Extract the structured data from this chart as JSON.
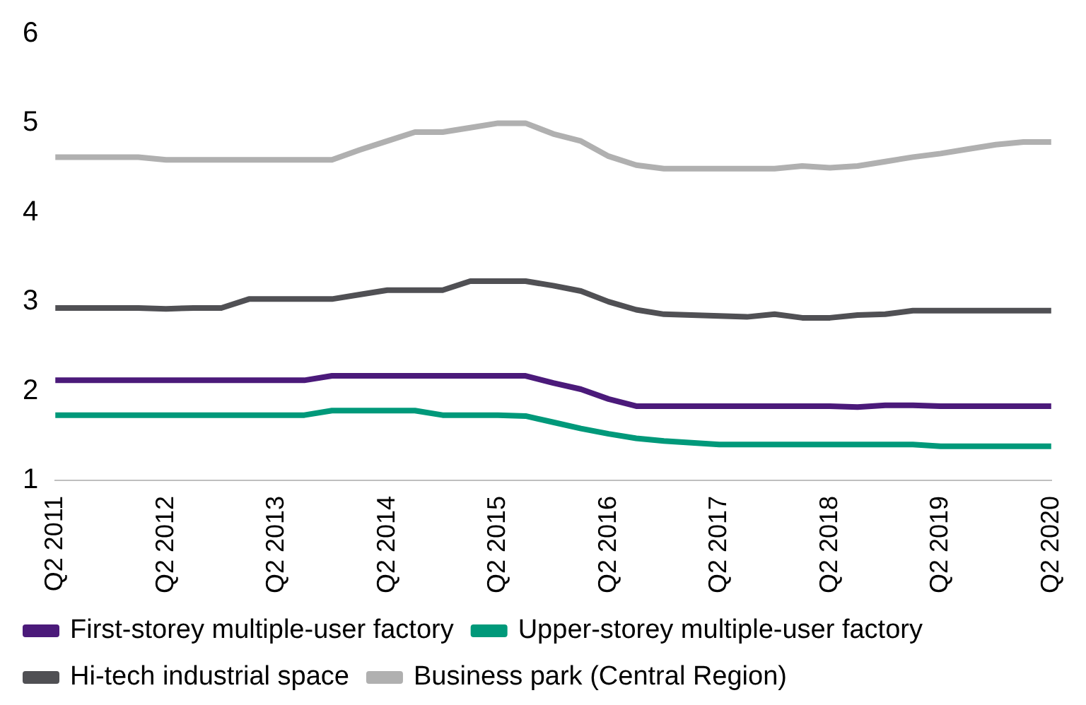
{
  "chart_data": {
    "type": "line",
    "categories": [
      "Q2 2011",
      null,
      null,
      null,
      "Q2 2012",
      null,
      null,
      null,
      "Q2 2013",
      null,
      null,
      null,
      "Q2 2014",
      null,
      null,
      null,
      "Q2 2015",
      null,
      null,
      null,
      "Q2 2016",
      null,
      null,
      null,
      "Q2 2017",
      null,
      null,
      null,
      "Q2 2018",
      null,
      null,
      null,
      "Q2 2019",
      null,
      null,
      null,
      "Q2 2020"
    ],
    "series": [
      {
        "name": "First-storey multiple-user factory",
        "color": "#4b1a7a",
        "values": [
          2.12,
          2.12,
          2.12,
          2.12,
          2.12,
          2.12,
          2.12,
          2.12,
          2.12,
          2.12,
          2.17,
          2.17,
          2.17,
          2.17,
          2.17,
          2.17,
          2.17,
          2.17,
          2.09,
          2.02,
          1.91,
          1.83,
          1.83,
          1.83,
          1.83,
          1.83,
          1.83,
          1.83,
          1.83,
          1.82,
          1.84,
          1.84,
          1.83,
          1.83,
          1.83,
          1.83,
          1.83
        ]
      },
      {
        "name": "Upper-storey multiple-user factory",
        "color": "#00997a",
        "values": [
          1.73,
          1.73,
          1.73,
          1.73,
          1.73,
          1.73,
          1.73,
          1.73,
          1.73,
          1.73,
          1.78,
          1.78,
          1.78,
          1.78,
          1.73,
          1.73,
          1.73,
          1.72,
          1.65,
          1.58,
          1.52,
          1.47,
          1.44,
          1.42,
          1.4,
          1.4,
          1.4,
          1.4,
          1.4,
          1.4,
          1.4,
          1.4,
          1.38,
          1.38,
          1.38,
          1.38,
          1.38
        ]
      },
      {
        "name": "Hi-tech industrial space",
        "color": "#505054",
        "values": [
          2.93,
          2.93,
          2.93,
          2.93,
          2.92,
          2.93,
          2.93,
          3.03,
          3.03,
          3.03,
          3.03,
          3.08,
          3.13,
          3.13,
          3.13,
          3.23,
          3.23,
          3.23,
          3.18,
          3.12,
          3.0,
          2.91,
          2.86,
          2.85,
          2.84,
          2.83,
          2.86,
          2.82,
          2.82,
          2.85,
          2.86,
          2.9,
          2.9,
          2.9,
          2.9,
          2.9,
          2.9
        ]
      },
      {
        "name": "Business park (Central Region)",
        "color": "#b0b0b0",
        "values": [
          4.62,
          4.62,
          4.62,
          4.62,
          4.59,
          4.59,
          4.59,
          4.59,
          4.59,
          4.59,
          4.59,
          4.7,
          4.8,
          4.9,
          4.9,
          4.95,
          5.0,
          5.0,
          4.88,
          4.8,
          4.63,
          4.53,
          4.49,
          4.49,
          4.49,
          4.49,
          4.49,
          4.52,
          4.5,
          4.52,
          4.57,
          4.62,
          4.66,
          4.71,
          4.76,
          4.79,
          4.79
        ]
      }
    ],
    "ylim": [
      1,
      6
    ],
    "yticks": [
      1,
      2,
      3,
      4,
      5,
      6
    ],
    "grid": false,
    "legend": "bottom",
    "marker": "none",
    "line_style": "solid"
  }
}
